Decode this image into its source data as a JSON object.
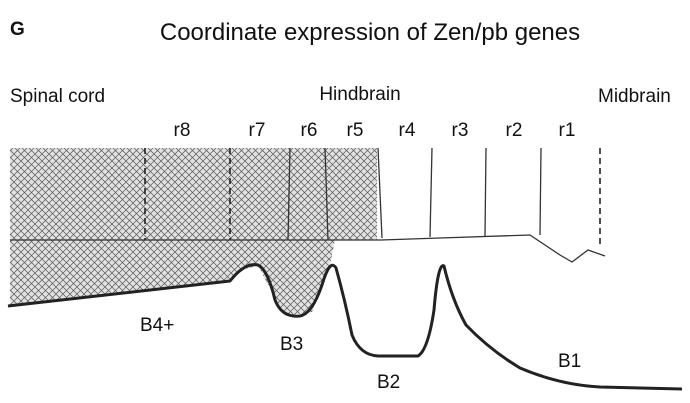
{
  "panel_label": "G",
  "title": "Coordinate expression of Zen/pb genes",
  "regions": [
    "Spinal cord",
    "Hindbrain",
    "Midbrain"
  ],
  "rhombomeres": [
    "r8",
    "r7",
    "r6",
    "r5",
    "r4",
    "r3",
    "r2",
    "r1"
  ],
  "domains": [
    "B4+",
    "B3",
    "B2",
    "B1"
  ]
}
